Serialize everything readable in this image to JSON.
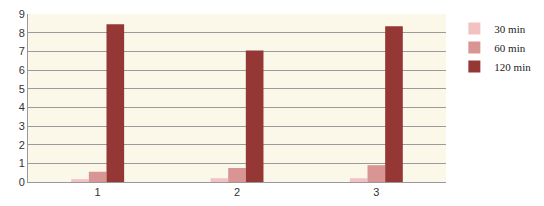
{
  "chart_data": {
    "type": "bar",
    "categories": [
      "1",
      "2",
      "3"
    ],
    "series": [
      {
        "name": "30 min",
        "color": "#f2c2c2",
        "values": [
          0.15,
          0.2,
          0.2
        ]
      },
      {
        "name": "60 min",
        "color": "#d99594",
        "values": [
          0.55,
          0.75,
          0.9
        ]
      },
      {
        "name": "120 min",
        "color": "#953735",
        "values": [
          8.45,
          7.05,
          8.35
        ]
      }
    ],
    "ylim": [
      0,
      9
    ],
    "yticks": [
      0,
      1,
      2,
      3,
      4,
      5,
      6,
      7,
      8,
      9
    ],
    "grid": true,
    "legend": "top right"
  }
}
